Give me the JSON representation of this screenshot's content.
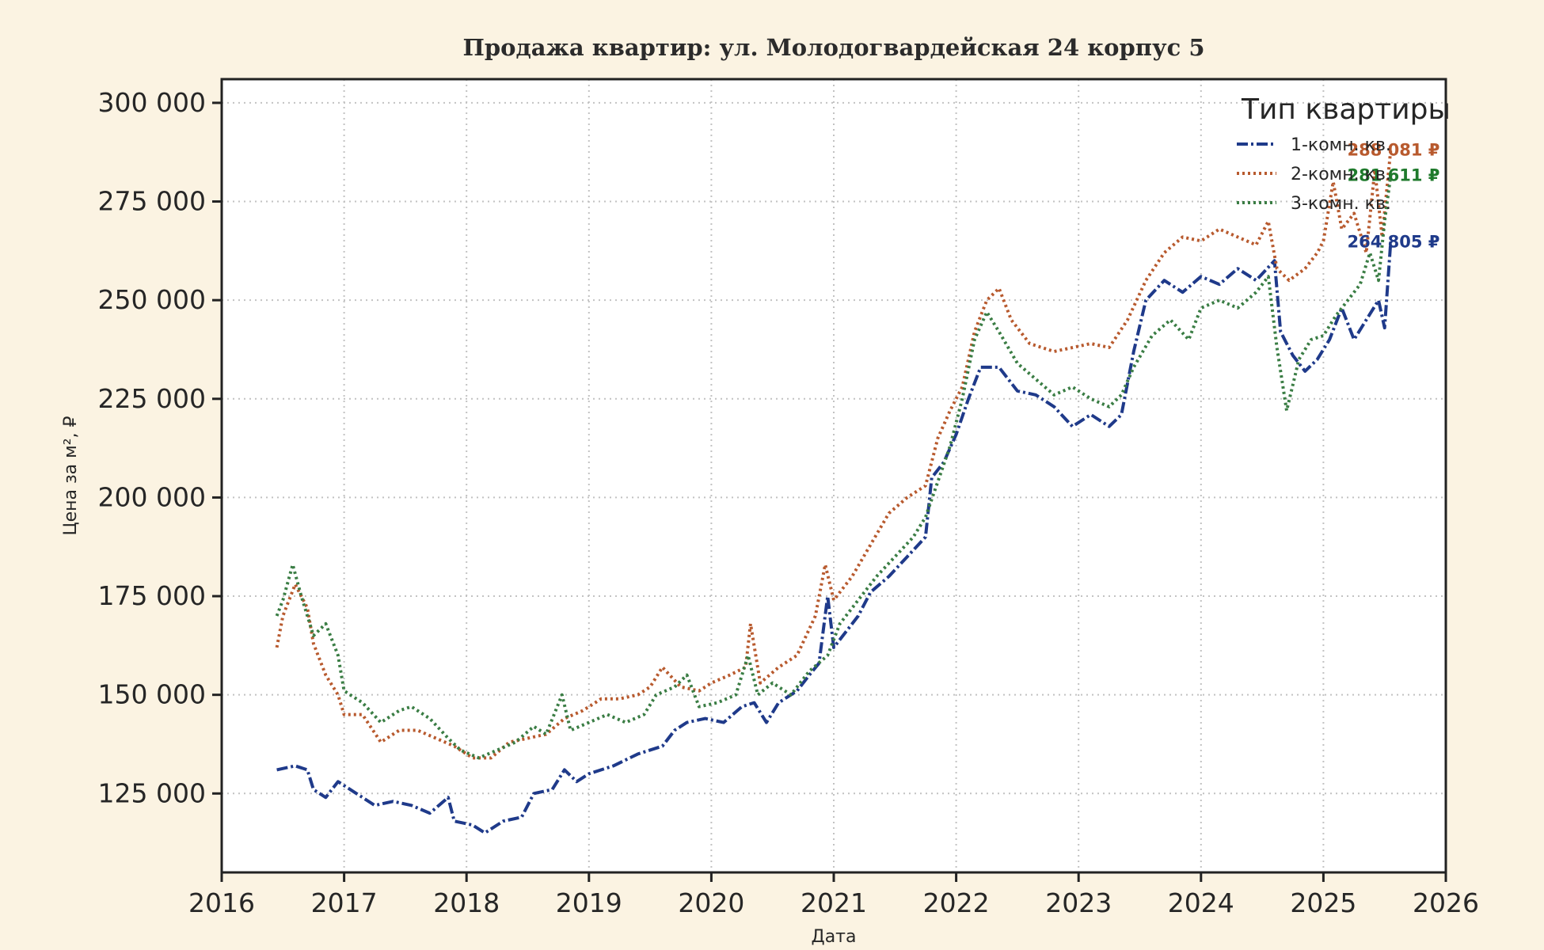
{
  "chart_data": {
    "type": "line",
    "title": "Продажа квартир: ул. Молодогвардейская 24 корпус 5",
    "xlabel": "Дата",
    "ylabel": "Цена за м², ₽",
    "xlim": [
      2016,
      2026
    ],
    "ylim": [
      105000,
      306000
    ],
    "x_ticks": [
      "2016",
      "2017",
      "2018",
      "2019",
      "2020",
      "2021",
      "2022",
      "2023",
      "2024",
      "2025",
      "2026"
    ],
    "y_ticks": [
      {
        "value": 125000,
        "label": "125 000"
      },
      {
        "value": 150000,
        "label": "150 000"
      },
      {
        "value": 175000,
        "label": "175 000"
      },
      {
        "value": 200000,
        "label": "200 000"
      },
      {
        "value": 225000,
        "label": "225 000"
      },
      {
        "value": 250000,
        "label": "250 000"
      },
      {
        "value": 275000,
        "label": "275 000"
      },
      {
        "value": 300000,
        "label": "300 000"
      }
    ],
    "grid": true,
    "legend": {
      "title": "Тип квартиры",
      "position": "top-right"
    },
    "series": [
      {
        "name": "1-комн. кв.",
        "color": "#1f3a8a",
        "style": "dashdot",
        "end_label": "264 805 ₽",
        "points": [
          [
            2016.45,
            131000
          ],
          [
            2016.6,
            132000
          ],
          [
            2016.7,
            131000
          ],
          [
            2016.75,
            126000
          ],
          [
            2016.85,
            124000
          ],
          [
            2016.95,
            128000
          ],
          [
            2017.1,
            125000
          ],
          [
            2017.25,
            122000
          ],
          [
            2017.4,
            123000
          ],
          [
            2017.55,
            122000
          ],
          [
            2017.7,
            120000
          ],
          [
            2017.85,
            124000
          ],
          [
            2017.9,
            118000
          ],
          [
            2018.05,
            117000
          ],
          [
            2018.15,
            115000
          ],
          [
            2018.3,
            118000
          ],
          [
            2018.45,
            119000
          ],
          [
            2018.55,
            125000
          ],
          [
            2018.7,
            126000
          ],
          [
            2018.8,
            131000
          ],
          [
            2018.9,
            128000
          ],
          [
            2019.0,
            130000
          ],
          [
            2019.2,
            132000
          ],
          [
            2019.4,
            135000
          ],
          [
            2019.6,
            137000
          ],
          [
            2019.7,
            141000
          ],
          [
            2019.8,
            143000
          ],
          [
            2019.95,
            144000
          ],
          [
            2020.1,
            143000
          ],
          [
            2020.25,
            147000
          ],
          [
            2020.35,
            148000
          ],
          [
            2020.45,
            143000
          ],
          [
            2020.55,
            148000
          ],
          [
            2020.7,
            151000
          ],
          [
            2020.8,
            155000
          ],
          [
            2020.88,
            158000
          ],
          [
            2020.95,
            175000
          ],
          [
            2021.0,
            162000
          ],
          [
            2021.1,
            166000
          ],
          [
            2021.2,
            170000
          ],
          [
            2021.3,
            176000
          ],
          [
            2021.45,
            180000
          ],
          [
            2021.6,
            185000
          ],
          [
            2021.75,
            190000
          ],
          [
            2021.8,
            205000
          ],
          [
            2021.9,
            209000
          ],
          [
            2022.0,
            216000
          ],
          [
            2022.1,
            225000
          ],
          [
            2022.2,
            233000
          ],
          [
            2022.35,
            233000
          ],
          [
            2022.5,
            227000
          ],
          [
            2022.65,
            226000
          ],
          [
            2022.8,
            223000
          ],
          [
            2022.95,
            218000
          ],
          [
            2023.1,
            221000
          ],
          [
            2023.25,
            218000
          ],
          [
            2023.35,
            221000
          ],
          [
            2023.45,
            237000
          ],
          [
            2023.55,
            250000
          ],
          [
            2023.7,
            255000
          ],
          [
            2023.85,
            252000
          ],
          [
            2024.0,
            256000
          ],
          [
            2024.15,
            254000
          ],
          [
            2024.3,
            258000
          ],
          [
            2024.45,
            255000
          ],
          [
            2024.6,
            260000
          ],
          [
            2024.65,
            242000
          ],
          [
            2024.75,
            236000
          ],
          [
            2024.85,
            232000
          ],
          [
            2024.95,
            235000
          ],
          [
            2025.05,
            240000
          ],
          [
            2025.15,
            248000
          ],
          [
            2025.25,
            240000
          ],
          [
            2025.35,
            245000
          ],
          [
            2025.45,
            250000
          ],
          [
            2025.5,
            243000
          ],
          [
            2025.55,
            264805
          ]
        ]
      },
      {
        "name": "2-комн. кв.",
        "color": "#b85a2e",
        "style": "dotted",
        "end_label": "288 081 ₽",
        "points": [
          [
            2016.45,
            162000
          ],
          [
            2016.5,
            170000
          ],
          [
            2016.6,
            178000
          ],
          [
            2016.7,
            172000
          ],
          [
            2016.75,
            163000
          ],
          [
            2016.85,
            155000
          ],
          [
            2016.95,
            150000
          ],
          [
            2017.0,
            145000
          ],
          [
            2017.15,
            145000
          ],
          [
            2017.3,
            138000
          ],
          [
            2017.45,
            141000
          ],
          [
            2017.6,
            141000
          ],
          [
            2017.75,
            139000
          ],
          [
            2017.9,
            137000
          ],
          [
            2018.05,
            134000
          ],
          [
            2018.2,
            134000
          ],
          [
            2018.35,
            138000
          ],
          [
            2018.5,
            139000
          ],
          [
            2018.65,
            140000
          ],
          [
            2018.8,
            144000
          ],
          [
            2018.95,
            146000
          ],
          [
            2019.1,
            149000
          ],
          [
            2019.25,
            149000
          ],
          [
            2019.4,
            150000
          ],
          [
            2019.5,
            152000
          ],
          [
            2019.6,
            157000
          ],
          [
            2019.75,
            152000
          ],
          [
            2019.9,
            151000
          ],
          [
            2020.0,
            153000
          ],
          [
            2020.15,
            155000
          ],
          [
            2020.28,
            157000
          ],
          [
            2020.32,
            168000
          ],
          [
            2020.4,
            153000
          ],
          [
            2020.55,
            157000
          ],
          [
            2020.7,
            160000
          ],
          [
            2020.85,
            170000
          ],
          [
            2020.93,
            183000
          ],
          [
            2021.0,
            174000
          ],
          [
            2021.15,
            180000
          ],
          [
            2021.3,
            188000
          ],
          [
            2021.45,
            196000
          ],
          [
            2021.6,
            200000
          ],
          [
            2021.75,
            203000
          ],
          [
            2021.85,
            215000
          ],
          [
            2021.95,
            222000
          ],
          [
            2022.05,
            228000
          ],
          [
            2022.15,
            242000
          ],
          [
            2022.25,
            250000
          ],
          [
            2022.35,
            253000
          ],
          [
            2022.45,
            245000
          ],
          [
            2022.6,
            239000
          ],
          [
            2022.8,
            237000
          ],
          [
            2022.95,
            238000
          ],
          [
            2023.1,
            239000
          ],
          [
            2023.25,
            238000
          ],
          [
            2023.4,
            245000
          ],
          [
            2023.55,
            255000
          ],
          [
            2023.7,
            262000
          ],
          [
            2023.85,
            266000
          ],
          [
            2024.0,
            265000
          ],
          [
            2024.15,
            268000
          ],
          [
            2024.3,
            266000
          ],
          [
            2024.45,
            264000
          ],
          [
            2024.55,
            270000
          ],
          [
            2024.62,
            258000
          ],
          [
            2024.72,
            255000
          ],
          [
            2024.85,
            258000
          ],
          [
            2024.95,
            262000
          ],
          [
            2025.0,
            265000
          ],
          [
            2025.08,
            280000
          ],
          [
            2025.15,
            268000
          ],
          [
            2025.25,
            272000
          ],
          [
            2025.35,
            262000
          ],
          [
            2025.42,
            283000
          ],
          [
            2025.48,
            266000
          ],
          [
            2025.55,
            288081
          ]
        ]
      },
      {
        "name": "3-комн. кв.",
        "color": "#3a7d44",
        "style": "dotted",
        "end_label": "281 611 ₽",
        "points": [
          [
            2016.45,
            170000
          ],
          [
            2016.5,
            174000
          ],
          [
            2016.58,
            183000
          ],
          [
            2016.65,
            175000
          ],
          [
            2016.75,
            165000
          ],
          [
            2016.85,
            168000
          ],
          [
            2016.95,
            160000
          ],
          [
            2017.0,
            151000
          ],
          [
            2017.15,
            148000
          ],
          [
            2017.3,
            143000
          ],
          [
            2017.45,
            146000
          ],
          [
            2017.55,
            147000
          ],
          [
            2017.7,
            144000
          ],
          [
            2017.85,
            139000
          ],
          [
            2017.95,
            136000
          ],
          [
            2018.1,
            134000
          ],
          [
            2018.25,
            136000
          ],
          [
            2018.4,
            138000
          ],
          [
            2018.55,
            142000
          ],
          [
            2018.65,
            140000
          ],
          [
            2018.78,
            150000
          ],
          [
            2018.85,
            141000
          ],
          [
            2019.0,
            143000
          ],
          [
            2019.15,
            145000
          ],
          [
            2019.3,
            143000
          ],
          [
            2019.45,
            145000
          ],
          [
            2019.55,
            150000
          ],
          [
            2019.7,
            152000
          ],
          [
            2019.8,
            155000
          ],
          [
            2019.9,
            147000
          ],
          [
            2020.05,
            148000
          ],
          [
            2020.2,
            150000
          ],
          [
            2020.3,
            160000
          ],
          [
            2020.38,
            150000
          ],
          [
            2020.5,
            153000
          ],
          [
            2020.65,
            150000
          ],
          [
            2020.8,
            156000
          ],
          [
            2020.95,
            160000
          ],
          [
            2021.05,
            168000
          ],
          [
            2021.2,
            174000
          ],
          [
            2021.35,
            180000
          ],
          [
            2021.5,
            185000
          ],
          [
            2021.65,
            190000
          ],
          [
            2021.75,
            195000
          ],
          [
            2021.85,
            204000
          ],
          [
            2021.95,
            213000
          ],
          [
            2022.05,
            225000
          ],
          [
            2022.15,
            240000
          ],
          [
            2022.25,
            247000
          ],
          [
            2022.35,
            242000
          ],
          [
            2022.5,
            234000
          ],
          [
            2022.65,
            230000
          ],
          [
            2022.8,
            226000
          ],
          [
            2022.95,
            228000
          ],
          [
            2023.1,
            225000
          ],
          [
            2023.25,
            223000
          ],
          [
            2023.35,
            226000
          ],
          [
            2023.45,
            233000
          ],
          [
            2023.6,
            241000
          ],
          [
            2023.75,
            245000
          ],
          [
            2023.9,
            240000
          ],
          [
            2024.0,
            248000
          ],
          [
            2024.15,
            250000
          ],
          [
            2024.3,
            248000
          ],
          [
            2024.45,
            252000
          ],
          [
            2024.55,
            256000
          ],
          [
            2024.62,
            238000
          ],
          [
            2024.7,
            222000
          ],
          [
            2024.8,
            235000
          ],
          [
            2024.9,
            240000
          ],
          [
            2025.0,
            241000
          ],
          [
            2025.1,
            246000
          ],
          [
            2025.2,
            250000
          ],
          [
            2025.3,
            254000
          ],
          [
            2025.38,
            262000
          ],
          [
            2025.45,
            255000
          ],
          [
            2025.5,
            270000
          ],
          [
            2025.55,
            281611
          ]
        ]
      }
    ]
  }
}
